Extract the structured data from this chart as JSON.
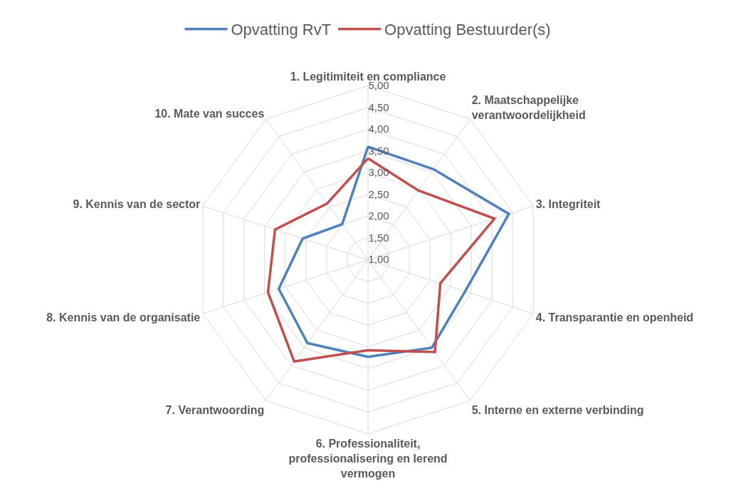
{
  "chart_data": {
    "type": "radar",
    "categories": [
      "1. Legitimiteit en compliance",
      "2. Maatschappelijke verantwoordelijkheid",
      "3. Integriteit",
      "4. Transparantie en openheid",
      "5. Interne en externe verbinding",
      "6. Professionaliteit, professionalisering en lerend vermogen",
      "7. Verantwoording",
      "8. Kennis van de organisatie",
      "9. Kennis van de sector",
      "10. Mate van succes"
    ],
    "series": [
      {
        "name": "Opvatting RvT",
        "color": "#4f81bd",
        "values": [
          3.6,
          3.57,
          4.41,
          3.35,
          3.5,
          3.23,
          3.37,
          3.16,
          2.58,
          2.01
        ]
      },
      {
        "name": "Opvatting Bestuurder(s)",
        "color": "#c0504d",
        "values": [
          3.33,
          2.97,
          4.06,
          2.75,
          3.62,
          3.08,
          3.89,
          3.42,
          3.25,
          2.6
        ]
      }
    ],
    "ylim": [
      1,
      5
    ],
    "yticks": [
      {
        "value": 1,
        "label": "1,00"
      },
      {
        "value": 1.5,
        "label": "1,50"
      },
      {
        "value": 2,
        "label": "2,00"
      },
      {
        "value": 2.5,
        "label": "2,50"
      },
      {
        "value": 3,
        "label": "3,00"
      },
      {
        "value": 3.5,
        "label": "3,50"
      },
      {
        "value": 4,
        "label": "4,00"
      },
      {
        "value": 4.5,
        "label": "4,50"
      },
      {
        "value": 5,
        "label": "5,00"
      }
    ],
    "grid": true,
    "legend": "top",
    "marker": "none",
    "line_style": "solid"
  }
}
